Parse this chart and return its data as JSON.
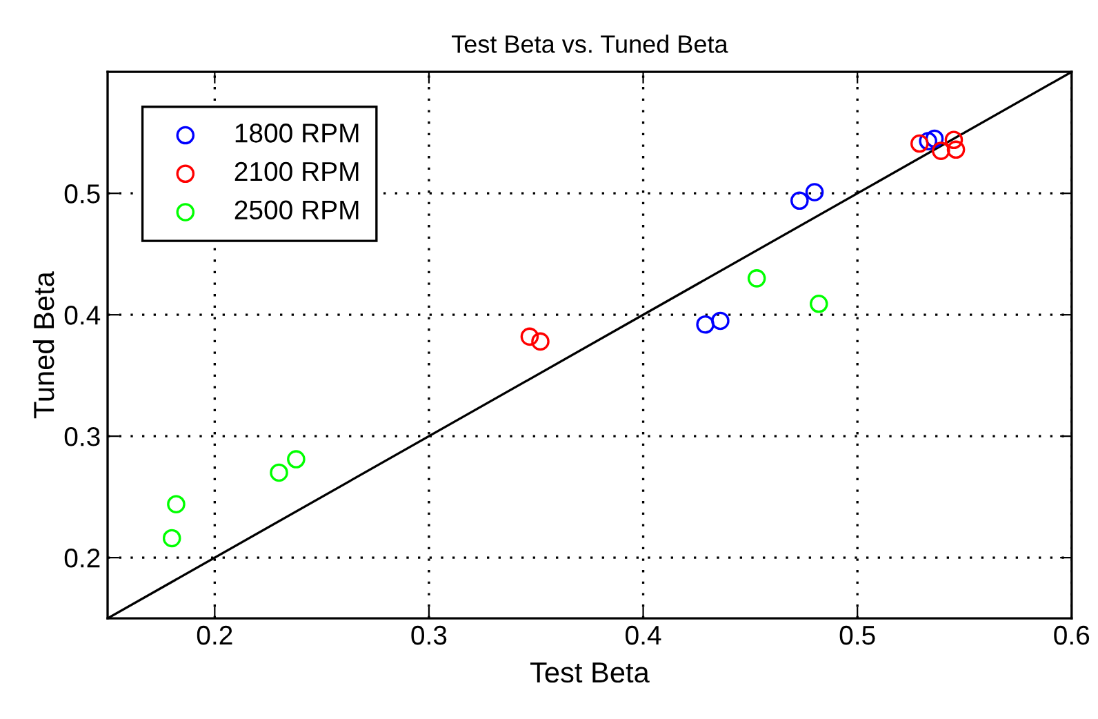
{
  "chart_data": {
    "type": "scatter",
    "title": "Test Beta vs. Tuned Beta",
    "xlabel": "Test Beta",
    "ylabel": "Tuned Beta",
    "xlim": [
      0.15,
      0.6
    ],
    "ylim": [
      0.15,
      0.6
    ],
    "xticks": [
      0.2,
      0.3,
      0.4,
      0.5,
      0.6
    ],
    "yticks": [
      0.2,
      0.3,
      0.4,
      0.5
    ],
    "grid": true,
    "legend": "top left",
    "marker": "circle",
    "series": [
      {
        "name": "1800 RPM",
        "color": "#0000ff",
        "x": [
          0.429,
          0.436,
          0.473,
          0.48,
          0.533,
          0.536
        ],
        "values": [
          0.392,
          0.395,
          0.494,
          0.501,
          0.543,
          0.545
        ]
      },
      {
        "name": "2100 RPM",
        "color": "#ff0000",
        "x": [
          0.347,
          0.352,
          0.529,
          0.539,
          0.545,
          0.546
        ],
        "values": [
          0.382,
          0.378,
          0.541,
          0.535,
          0.544,
          0.536
        ]
      },
      {
        "name": "2500 RPM",
        "color": "#00ff00",
        "x": [
          0.18,
          0.182,
          0.23,
          0.238,
          0.453,
          0.482
        ],
        "values": [
          0.216,
          0.244,
          0.27,
          0.281,
          0.43,
          0.409
        ]
      },
      {
        "type": "line",
        "marker": "none",
        "line_style": "solid",
        "color": "#000000",
        "x": [
          0.15,
          0.6
        ],
        "values": [
          0.15,
          0.6
        ]
      }
    ]
  }
}
